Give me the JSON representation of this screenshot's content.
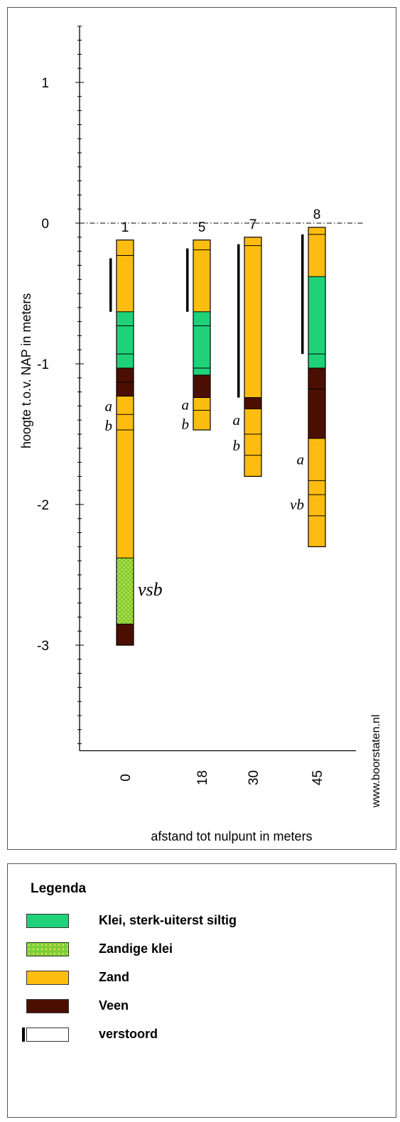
{
  "chart_data": {
    "type": "borehole-profile",
    "ylabel": "hoogte t.o.v. NAP in meters",
    "xlabel": "afstand tot nulpunt in meters",
    "watermark": "www.boorstaten.nl",
    "ylim": [
      -3.75,
      1.4
    ],
    "y_ticks": [
      1,
      0,
      -1,
      -2,
      -3
    ],
    "y_tick_labels": [
      "1",
      "0",
      "-1",
      "-2",
      "-3"
    ],
    "reference_line": {
      "y": 0,
      "style": "dash-dot"
    },
    "colors": {
      "klei": "#1fd27a",
      "zandige_klei": "#7ccf3a",
      "zand": "#fdbd10",
      "veen": "#4b0f00",
      "verstoord": "#000000",
      "outline": "#000000"
    },
    "boreholes": [
      {
        "id": "1",
        "distance_label": "0",
        "top": -0.12,
        "bottom": -3.0,
        "layers": [
          {
            "top": -0.12,
            "bottom": -0.63,
            "type": "zand"
          },
          {
            "top": -0.63,
            "bottom": -1.03,
            "type": "klei"
          },
          {
            "top": -1.03,
            "bottom": -1.23,
            "type": "veen"
          },
          {
            "top": -1.23,
            "bottom": -2.38,
            "type": "zand"
          },
          {
            "top": -2.38,
            "bottom": -2.85,
            "type": "zandige_klei"
          },
          {
            "top": -2.85,
            "bottom": -3.0,
            "type": "veen"
          }
        ],
        "dividers": [
          -0.23,
          -0.73,
          -0.93,
          -1.13,
          -1.36,
          -1.47
        ],
        "verstoord": {
          "top": -0.25,
          "bottom": -0.63
        },
        "labels": [
          {
            "text": "a",
            "y": -1.3
          },
          {
            "text": "b",
            "y": -1.44
          },
          {
            "text": "vsb",
            "y": -2.6
          }
        ]
      },
      {
        "id": "5",
        "distance_label": "18",
        "top": -0.12,
        "bottom": -1.47,
        "layers": [
          {
            "top": -0.12,
            "bottom": -0.63,
            "type": "zand"
          },
          {
            "top": -0.63,
            "bottom": -1.08,
            "type": "klei"
          },
          {
            "top": -1.08,
            "bottom": -1.24,
            "type": "veen"
          },
          {
            "top": -1.24,
            "bottom": -1.47,
            "type": "zand"
          }
        ],
        "dividers": [
          -0.19,
          -0.73,
          -1.03,
          -1.33
        ],
        "verstoord": {
          "top": -0.18,
          "bottom": -0.63
        },
        "labels": [
          {
            "text": "a",
            "y": -1.29
          },
          {
            "text": "b",
            "y": -1.43
          }
        ]
      },
      {
        "id": "7",
        "distance_label": "30",
        "top": -0.1,
        "bottom": -1.8,
        "layers": [
          {
            "top": -0.1,
            "bottom": -1.24,
            "type": "zand"
          },
          {
            "top": -1.24,
            "bottom": -1.32,
            "type": "veen"
          },
          {
            "top": -1.32,
            "bottom": -1.8,
            "type": "zand"
          }
        ],
        "dividers": [
          -0.16,
          -1.5,
          -1.65
        ],
        "verstoord": {
          "top": -0.15,
          "bottom": -1.24
        },
        "labels": [
          {
            "text": "a",
            "y": -1.4
          },
          {
            "text": "b",
            "y": -1.58
          }
        ]
      },
      {
        "id": "8",
        "distance_label": "45",
        "top": -0.03,
        "bottom": -2.3,
        "layers": [
          {
            "top": -0.03,
            "bottom": -0.38,
            "type": "zand"
          },
          {
            "top": -0.38,
            "bottom": -1.03,
            "type": "klei"
          },
          {
            "top": -1.03,
            "bottom": -1.53,
            "type": "veen"
          },
          {
            "top": -1.53,
            "bottom": -2.3,
            "type": "zand"
          }
        ],
        "dividers": [
          -0.08,
          -0.93,
          -1.18,
          -1.83,
          -1.93,
          -2.08
        ],
        "verstoord": {
          "top": -0.08,
          "bottom": -0.93
        },
        "labels": [
          {
            "text": "a",
            "y": -1.68
          },
          {
            "text": "vb",
            "y": -2.0
          }
        ]
      }
    ]
  },
  "legend": {
    "title": "Legenda",
    "items": [
      {
        "label": "Klei, sterk-uiterst siltig",
        "type": "klei"
      },
      {
        "label": "Zandige klei",
        "type": "zandige_klei"
      },
      {
        "label": "Zand",
        "type": "zand"
      },
      {
        "label": "Veen",
        "type": "veen"
      },
      {
        "label": "verstoord",
        "type": "verstoord"
      }
    ]
  }
}
